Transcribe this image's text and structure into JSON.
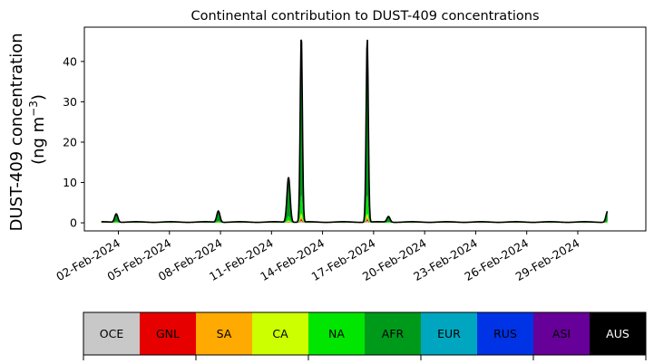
{
  "chart_data": {
    "type": "area",
    "stacked": true,
    "title": "Continental contribution to DUST-409 concentrations",
    "ylabel_line1": "DUST-409 concentration",
    "ylabel_line2_prefix": "(ng m",
    "ylabel_line2_sup": "−3",
    "ylabel_line2_suffix": ")",
    "xlim": [
      "2024-01-31",
      "2024-03-04"
    ],
    "ylim": [
      -2,
      48.5
    ],
    "y_ticks": [
      0,
      10,
      20,
      30,
      40
    ],
    "y_tick_labels": [
      "0",
      "10",
      "20",
      "30",
      "40"
    ],
    "x_ticks": [
      "2024-02-02",
      "2024-02-05",
      "2024-02-08",
      "2024-02-11",
      "2024-02-14",
      "2024-02-17",
      "2024-02-20",
      "2024-02-23",
      "2024-02-26",
      "2024-02-29"
    ],
    "x_tick_labels": [
      "02-Feb-2024",
      "05-Feb-2024",
      "08-Feb-2024",
      "11-Feb-2024",
      "14-Feb-2024",
      "17-Feb-2024",
      "20-Feb-2024",
      "23-Feb-2024",
      "26-Feb-2024",
      "29-Feb-2024"
    ],
    "grid": false,
    "total_peaks": [
      {
        "date": "2024-02-01T21:00",
        "value": 2.1
      },
      {
        "date": "2024-02-07T21:00",
        "value": 2.8
      },
      {
        "date": "2024-02-12T00:00",
        "value": 11.2
      },
      {
        "date": "2024-02-12T18:00",
        "value": 46.5
      },
      {
        "date": "2024-02-16T15:00",
        "value": 45.8
      },
      {
        "date": "2024-02-17T21:00",
        "value": 1.4
      },
      {
        "date": "2024-03-01T18:00",
        "value": 2.7
      }
    ],
    "series": [
      {
        "name": "OCE",
        "color": "#c8c8c8"
      },
      {
        "name": "GNL",
        "color": "#e60000"
      },
      {
        "name": "SA",
        "color": "#ffaa00"
      },
      {
        "name": "CA",
        "color": "#ccff00"
      },
      {
        "name": "NA",
        "color": "#00e600"
      },
      {
        "name": "AFR",
        "color": "#009a1a"
      },
      {
        "name": "EUR",
        "color": "#00a6c0"
      },
      {
        "name": "RUS",
        "color": "#0033e6"
      },
      {
        "name": "ASI",
        "color": "#660099"
      },
      {
        "name": "AUS",
        "color": "#000000"
      }
    ]
  }
}
